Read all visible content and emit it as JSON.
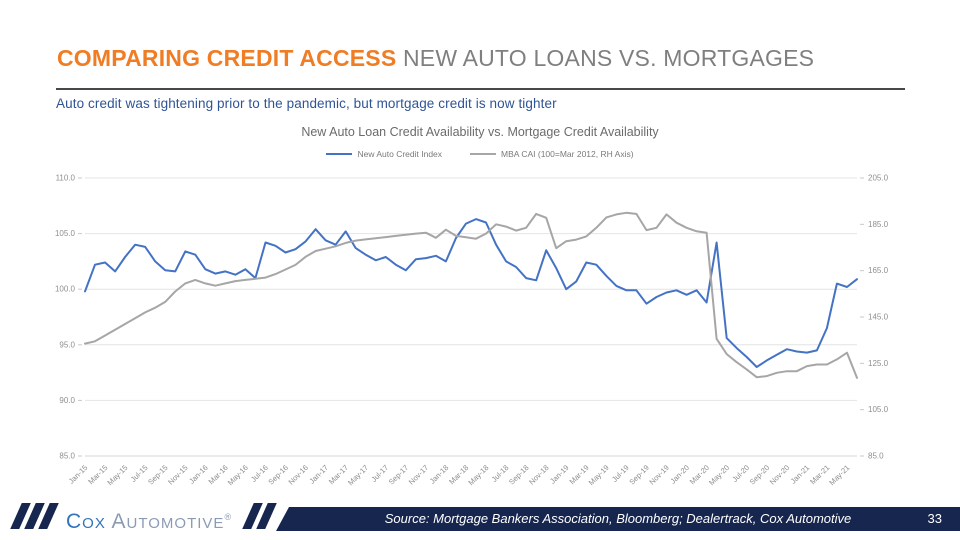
{
  "slide": {
    "title": {
      "highlight": "COMPARING CREDIT ACCESS",
      "rest": " NEW AUTO LOANS VS. MORTGAGES"
    },
    "subtitle": "Auto credit was tightening prior to the pandemic, but mortgage credit is now tighter",
    "source": "Source: Mortgage Bankers Association, Bloomberg; Dealertrack, Cox Automotive",
    "page_number": "33",
    "logo": {
      "brand_first": "Cox",
      "brand_second": "Automotive",
      "mark": "®"
    }
  },
  "colors": {
    "accent_orange": "#F07C24",
    "title_gray": "#7F7F7F",
    "subtitle_blue": "#2F5496",
    "footer_navy": "#16264F",
    "logo_blue": "#3273B9",
    "logo_gray_blue": "#8C9BB4",
    "gridline": "#e4e4e4",
    "axis_text": "#8f8f8f"
  },
  "chart_data": {
    "type": "line",
    "title": "New Auto Loan Credit Availability vs. Mortgage Credit Availability",
    "legend_position": "top",
    "grid": "horizontal",
    "x_tick_step": 2,
    "categories": [
      "Jan-15",
      "Feb-15",
      "Mar-15",
      "Apr-15",
      "May-15",
      "Jun-15",
      "Jul-15",
      "Aug-15",
      "Sep-15",
      "Oct-15",
      "Nov-15",
      "Dec-15",
      "Jan-16",
      "Feb-16",
      "Mar-16",
      "Apr-16",
      "May-16",
      "Jun-16",
      "Jul-16",
      "Aug-16",
      "Sep-16",
      "Oct-16",
      "Nov-16",
      "Dec-16",
      "Jan-17",
      "Feb-17",
      "Mar-17",
      "Apr-17",
      "May-17",
      "Jun-17",
      "Jul-17",
      "Aug-17",
      "Sep-17",
      "Oct-17",
      "Nov-17",
      "Dec-17",
      "Jan-18",
      "Feb-18",
      "Mar-18",
      "Apr-18",
      "May-18",
      "Jun-18",
      "Jul-18",
      "Aug-18",
      "Sep-18",
      "Oct-18",
      "Nov-18",
      "Dec-18",
      "Jan-19",
      "Feb-19",
      "Mar-19",
      "Apr-19",
      "May-19",
      "Jun-19",
      "Jul-19",
      "Aug-19",
      "Sep-19",
      "Oct-19",
      "Nov-19",
      "Dec-19",
      "Jan-20",
      "Feb-20",
      "Mar-20",
      "Apr-20",
      "May-20",
      "Jun-20",
      "Jul-20",
      "Aug-20",
      "Sep-20",
      "Oct-20",
      "Nov-20",
      "Dec-20",
      "Jan-21",
      "Feb-21",
      "Mar-21",
      "Apr-21",
      "May-21",
      "Jun-21"
    ],
    "left_axis": {
      "min": 85,
      "max": 110,
      "step": 5,
      "ticks": [
        "110.0",
        "105.0",
        "100.0",
        "95.0",
        "90.0",
        "85.0"
      ]
    },
    "right_axis": {
      "min": 85,
      "max": 205,
      "step": 20,
      "ticks": [
        "205.0",
        "185.0",
        "165.0",
        "145.0",
        "125.0",
        "105.0",
        "85.0"
      ]
    },
    "series": [
      {
        "name": "New Auto Credit Index",
        "axis": "left",
        "color": "#4472C4",
        "values": [
          99.8,
          102.2,
          102.4,
          101.6,
          102.9,
          104.0,
          103.8,
          102.5,
          101.7,
          101.6,
          103.4,
          103.1,
          101.8,
          101.4,
          101.6,
          101.3,
          101.8,
          101.0,
          104.2,
          103.9,
          103.3,
          103.6,
          104.3,
          105.4,
          104.4,
          104.0,
          105.2,
          103.7,
          103.1,
          102.6,
          102.9,
          102.2,
          101.7,
          102.7,
          102.8,
          103.0,
          102.5,
          104.6,
          105.9,
          106.3,
          106.0,
          104.0,
          102.5,
          102.0,
          101.0,
          100.8,
          103.5,
          101.9,
          100.0,
          100.7,
          102.4,
          102.2,
          101.2,
          100.3,
          99.9,
          99.9,
          98.7,
          99.3,
          99.7,
          99.9,
          99.5,
          99.9,
          98.8,
          104.2,
          95.6,
          94.7,
          93.9,
          93.0,
          93.6,
          94.1,
          94.6,
          94.4,
          94.3,
          94.5,
          96.5,
          100.5,
          100.2,
          100.9
        ]
      },
      {
        "name": "MBA CAI (100=Mar 2012, RH Axis)",
        "axis": "right",
        "color": "#A6A6A6",
        "values": [
          133.5,
          134.5,
          137.0,
          139.5,
          142.0,
          144.5,
          147.0,
          149.0,
          151.5,
          156.0,
          159.5,
          161.0,
          159.5,
          158.5,
          159.5,
          160.5,
          161.0,
          161.5,
          162.0,
          163.5,
          165.5,
          167.5,
          171.0,
          173.5,
          174.5,
          175.5,
          177.0,
          178.0,
          178.5,
          179.0,
          179.5,
          180.0,
          180.5,
          181.0,
          181.4,
          179.2,
          182.7,
          180.0,
          179.4,
          178.8,
          181.0,
          185.0,
          184.0,
          182.3,
          183.5,
          189.5,
          187.8,
          174.7,
          177.7,
          178.4,
          179.8,
          183.5,
          188.0,
          189.3,
          190.0,
          189.5,
          182.5,
          183.5,
          189.3,
          185.7,
          183.5,
          182.0,
          181.4,
          135.6,
          129.0,
          125.5,
          122.4,
          119.0,
          119.5,
          120.9,
          121.6,
          121.6,
          123.8,
          124.5,
          124.5,
          126.7,
          129.6,
          118.7
        ]
      }
    ]
  }
}
